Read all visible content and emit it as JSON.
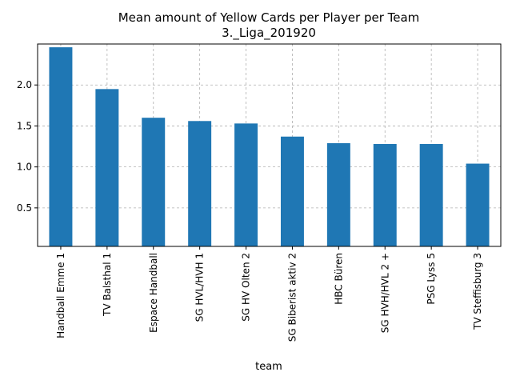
{
  "chart_data": {
    "type": "bar",
    "title": "Mean amount of Yellow Cards per Player per Team",
    "subtitle": "3._Liga_201920",
    "xlabel": "team",
    "ylabel": "",
    "categories": [
      "Handball Emme 1",
      "TV Balsthal 1",
      "Espace Handball",
      "SG HVL/HVH 1",
      "SG HV Olten 2",
      "SG Biberist aktiv 2",
      "HBC Büren",
      "SG HVH/HVL 2 +",
      "PSG Lyss 5",
      "TV Steffisburg 3"
    ],
    "values": [
      2.46,
      1.95,
      1.6,
      1.56,
      1.53,
      1.37,
      1.29,
      1.28,
      1.28,
      1.04
    ],
    "yticks": [
      "0.5",
      "1.0",
      "1.5",
      "2.0"
    ],
    "ylim": [
      0.03,
      2.5
    ],
    "grid": true,
    "legend": "none",
    "colors": {
      "bar": "#1f77b4",
      "grid": "#b0b0b0",
      "axis": "#000000"
    }
  }
}
